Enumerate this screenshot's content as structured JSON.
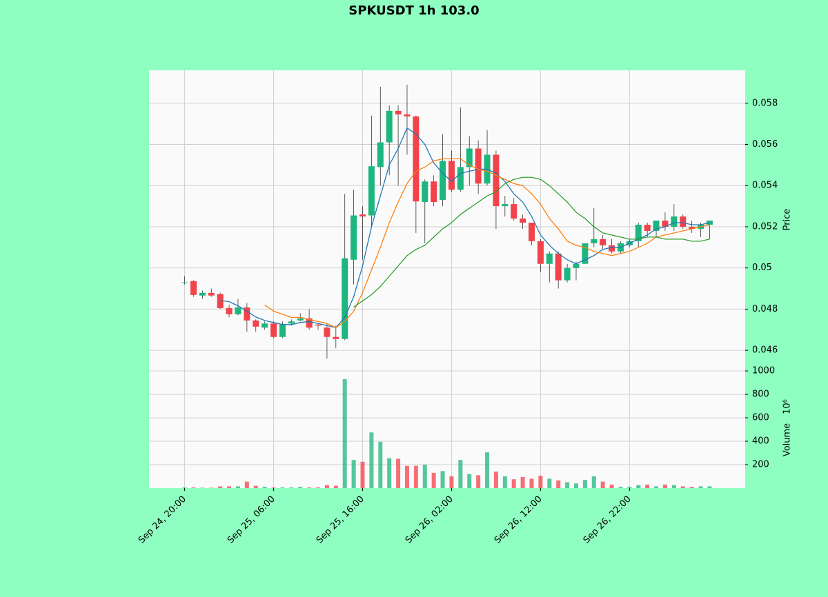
{
  "chart_data": {
    "type": "candlestick",
    "title": "SPKUSDT 1h 103.0",
    "x": [
      "Sep 24, 20:00",
      "Sep 24, 21:00",
      "Sep 24, 22:00",
      "Sep 24, 23:00",
      "Sep 25, 00:00",
      "Sep 25, 01:00",
      "Sep 25, 02:00",
      "Sep 25, 03:00",
      "Sep 25, 04:00",
      "Sep 25, 05:00",
      "Sep 25, 06:00",
      "Sep 25, 07:00",
      "Sep 25, 08:00",
      "Sep 25, 09:00",
      "Sep 25, 10:00",
      "Sep 25, 11:00",
      "Sep 25, 12:00",
      "Sep 25, 13:00",
      "Sep 25, 14:00",
      "Sep 25, 15:00",
      "Sep 25, 16:00",
      "Sep 25, 17:00",
      "Sep 25, 18:00",
      "Sep 25, 19:00",
      "Sep 25, 20:00",
      "Sep 25, 21:00",
      "Sep 25, 22:00",
      "Sep 25, 23:00",
      "Sep 26, 00:00",
      "Sep 26, 01:00",
      "Sep 26, 02:00",
      "Sep 26, 03:00",
      "Sep 26, 04:00",
      "Sep 26, 05:00",
      "Sep 26, 06:00",
      "Sep 26, 07:00",
      "Sep 26, 08:00",
      "Sep 26, 09:00",
      "Sep 26, 10:00",
      "Sep 26, 11:00",
      "Sep 26, 12:00",
      "Sep 26, 13:00",
      "Sep 26, 14:00",
      "Sep 26, 15:00",
      "Sep 26, 16:00",
      "Sep 26, 17:00",
      "Sep 26, 18:00",
      "Sep 26, 19:00",
      "Sep 26, 20:00",
      "Sep 26, 21:00",
      "Sep 26, 22:00",
      "Sep 26, 23:00",
      "Sep 27, 00:00",
      "Sep 27, 01:00",
      "Sep 27, 02:00",
      "Sep 27, 03:00",
      "Sep 27, 04:00",
      "Sep 27, 05:00",
      "Sep 27, 06:00",
      "Sep 27, 07:00"
    ],
    "open": [
      0.0493,
      0.04936,
      0.04866,
      0.04879,
      0.04873,
      0.04805,
      0.04775,
      0.04808,
      0.04745,
      0.0471,
      0.0473,
      0.04665,
      0.0473,
      0.04745,
      0.04755,
      0.04725,
      0.0471,
      0.04665,
      0.04655,
      0.0504,
      0.0526,
      0.05255,
      0.0549,
      0.0561,
      0.05763,
      0.05746,
      0.05736,
      0.0532,
      0.0542,
      0.0533,
      0.0552,
      0.0538,
      0.0549,
      0.0558,
      0.0541,
      0.0555,
      0.053,
      0.0531,
      0.0524,
      0.0522,
      0.0513,
      0.0502,
      0.0507,
      0.0494,
      0.05,
      0.0502,
      0.0512,
      0.0514,
      0.0511,
      0.0508,
      0.0511,
      0.0513,
      0.0521,
      0.0518,
      0.0523,
      0.052,
      0.0525,
      0.052,
      0.0519,
      0.0521
    ],
    "high": [
      0.0496,
      0.0494,
      0.0489,
      0.049,
      0.0488,
      0.0482,
      0.0485,
      0.0483,
      0.0475,
      0.0474,
      0.0474,
      0.0474,
      0.0475,
      0.0478,
      0.048,
      0.0473,
      0.0473,
      0.0472,
      0.0536,
      0.0538,
      0.053,
      0.0574,
      0.0588,
      0.0579,
      0.0579,
      0.0589,
      0.0574,
      0.0543,
      0.0545,
      0.0565,
      0.0557,
      0.0578,
      0.0564,
      0.0562,
      0.0567,
      0.0557,
      0.0535,
      0.0534,
      0.0526,
      0.0522,
      0.0514,
      0.0508,
      0.0508,
      0.0502,
      0.0503,
      0.0512,
      0.0529,
      0.0516,
      0.0514,
      0.0513,
      0.0514,
      0.0522,
      0.0522,
      0.0523,
      0.0527,
      0.0531,
      0.0526,
      0.0523,
      0.0522,
      0.0523
    ],
    "low": [
      0.0492,
      0.0486,
      0.0485,
      0.0486,
      0.048,
      0.0476,
      0.0477,
      0.0469,
      0.0469,
      0.047,
      0.0466,
      0.0466,
      0.0472,
      0.0474,
      0.047,
      0.047,
      0.0456,
      0.0461,
      0.0465,
      0.0492,
      0.0504,
      0.052,
      0.054,
      0.0545,
      0.054,
      0.0555,
      0.0517,
      0.0512,
      0.053,
      0.053,
      0.0537,
      0.0537,
      0.054,
      0.0536,
      0.054,
      0.0519,
      0.0525,
      0.0523,
      0.0519,
      0.0511,
      0.0498,
      0.0493,
      0.049,
      0.0493,
      0.0494,
      0.0502,
      0.051,
      0.0509,
      0.0507,
      0.0507,
      0.051,
      0.051,
      0.0515,
      0.0515,
      0.0518,
      0.0518,
      0.0519,
      0.0517,
      0.0515,
      0.0514
    ],
    "close": [
      0.0493,
      0.04869,
      0.04879,
      0.04866,
      0.04805,
      0.04775,
      0.04808,
      0.04745,
      0.04715,
      0.0473,
      0.04665,
      0.04725,
      0.0474,
      0.04755,
      0.0471,
      0.0472,
      0.04665,
      0.04655,
      0.05047,
      0.05255,
      0.0525,
      0.05494,
      0.0561,
      0.05763,
      0.05746,
      0.05736,
      0.05323,
      0.0542,
      0.0532,
      0.0552,
      0.0538,
      0.0549,
      0.0558,
      0.0541,
      0.0555,
      0.053,
      0.0531,
      0.0524,
      0.0522,
      0.0513,
      0.0502,
      0.0507,
      0.0494,
      0.05,
      0.0502,
      0.0512,
      0.0514,
      0.0511,
      0.0508,
      0.0512,
      0.0513,
      0.0521,
      0.0518,
      0.0523,
      0.052,
      0.0525,
      0.052,
      0.0519,
      0.0521,
      0.0523
    ],
    "up_color": "#1db67e",
    "down_color": "#f2424a",
    "series": [
      {
        "color": "#1f77b4",
        "values": [
          null,
          null,
          null,
          null,
          0.04842,
          0.04836,
          0.04816,
          0.0479,
          0.04762,
          0.04745,
          0.04735,
          0.04725,
          0.04725,
          0.04735,
          0.0474,
          0.0473,
          0.0472,
          0.0471,
          0.0476,
          0.0486,
          0.0501,
          0.052,
          0.0535,
          0.055,
          0.0558,
          0.0568,
          0.0565,
          0.056,
          0.0551,
          0.0546,
          0.0542,
          0.0546,
          0.0547,
          0.0548,
          0.0548,
          0.0546,
          0.0542,
          0.0536,
          0.0532,
          0.0525,
          0.0516,
          0.0511,
          0.0507,
          0.0504,
          0.0502,
          0.0504,
          0.0506,
          0.0509,
          0.051,
          0.051,
          0.0512,
          0.0514,
          0.0516,
          0.0519,
          0.052,
          0.0522,
          0.0522,
          0.0521,
          0.0521,
          0.0522
        ]
      },
      {
        "color": "#ff7f0e",
        "values": [
          null,
          null,
          null,
          null,
          null,
          null,
          null,
          null,
          null,
          0.0482,
          0.0479,
          0.04775,
          0.0476,
          0.0476,
          0.0475,
          0.0474,
          0.0473,
          0.0471,
          0.0474,
          0.0479,
          0.0488,
          0.0499,
          0.051,
          0.0522,
          0.0532,
          0.0541,
          0.0547,
          0.0549,
          0.0552,
          0.0553,
          0.0553,
          0.0553,
          0.055,
          0.0548,
          0.0547,
          0.0545,
          0.0543,
          0.0541,
          0.054,
          0.0536,
          0.0531,
          0.0524,
          0.0519,
          0.0513,
          0.0511,
          0.051,
          0.0508,
          0.0507,
          0.0506,
          0.0507,
          0.0508,
          0.051,
          0.0512,
          0.0515,
          0.0516,
          0.0517,
          0.0518,
          0.0519,
          0.052,
          0.0521
        ]
      },
      {
        "color": "#2ca02c",
        "values": [
          null,
          null,
          null,
          null,
          null,
          null,
          null,
          null,
          null,
          null,
          null,
          null,
          null,
          null,
          null,
          null,
          null,
          null,
          null,
          0.0481,
          0.0484,
          0.0487,
          0.0491,
          0.0496,
          0.0501,
          0.0506,
          0.0509,
          0.0511,
          0.0515,
          0.0519,
          0.0522,
          0.0526,
          0.0529,
          0.0532,
          0.0535,
          0.0537,
          0.0541,
          0.0543,
          0.0544,
          0.0544,
          0.0543,
          0.054,
          0.0536,
          0.0532,
          0.0527,
          0.0524,
          0.052,
          0.0517,
          0.0516,
          0.0515,
          0.0514,
          0.0514,
          0.0515,
          0.0515,
          0.0514,
          0.0514,
          0.0514,
          0.0513,
          0.0513,
          0.0514
        ]
      }
    ],
    "ylabel": "Price",
    "ylim": [
      0.0451,
      0.0596
    ],
    "yticks": [
      0.046,
      0.048,
      0.05,
      0.052,
      0.054,
      0.056,
      0.058
    ],
    "xticks": [
      "Sep 24, 20:00",
      "Sep 25, 06:00",
      "Sep 25, 16:00",
      "Sep 26, 02:00",
      "Sep 26, 12:00",
      "Sep 26, 22:00"
    ],
    "grid": true,
    "volume": {
      "ylabel": "Volume",
      "offset_label": "10⁶",
      "ylim": [
        0,
        1018
      ],
      "yticks": [
        200,
        400,
        600,
        800,
        1000
      ],
      "values": [
        5,
        5,
        3,
        3,
        15,
        15,
        15,
        55,
        20,
        10,
        5,
        5,
        5,
        10,
        5,
        5,
        25,
        20,
        930,
        240,
        225,
        475,
        395,
        255,
        250,
        190,
        190,
        200,
        130,
        145,
        100,
        240,
        120,
        110,
        305,
        140,
        100,
        75,
        95,
        80,
        105,
        80,
        65,
        50,
        40,
        70,
        100,
        55,
        30,
        10,
        10,
        25,
        30,
        15,
        30,
        25,
        15,
        10,
        15,
        15
      ]
    }
  }
}
